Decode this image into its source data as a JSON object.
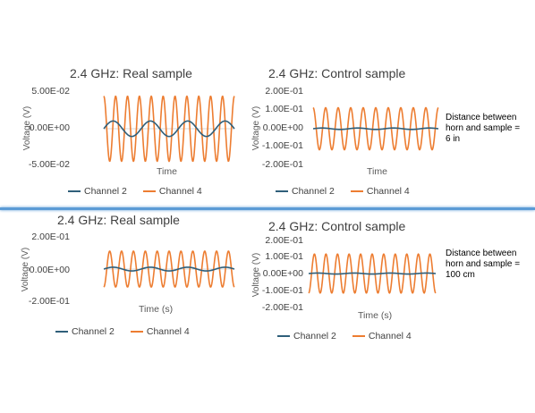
{
  "colors": {
    "channel2": "#2f5f7a",
    "channel4": "#ed7d31",
    "axis": "#d9d9d9",
    "divider": "#5b9bd5"
  },
  "notes": {
    "top": [
      "Distance between",
      "horn and sample =",
      "6 in"
    ],
    "bottom": [
      "Distance between",
      "horn and sample =",
      "100 cm"
    ]
  },
  "chart_data": [
    {
      "type": "line",
      "title": "2.4 GHz: Real sample",
      "xlabel": "Time",
      "ylabel": "Voltage (V)",
      "yticks": [
        "5.00E-02",
        "0.00E+00",
        "-5.00E-02"
      ],
      "ylim": [
        -0.05,
        0.05
      ],
      "legend": "bottom",
      "grid": false,
      "cycles": 11,
      "series": [
        {
          "name": "Channel 2",
          "amplitude": 0.009,
          "cycles": 3.5,
          "phase": 0.0
        },
        {
          "name": "Channel 4",
          "amplitude": 0.038,
          "cycles": 11,
          "phase": 1.57
        }
      ]
    },
    {
      "type": "line",
      "title": "2.4 GHz: Control sample",
      "xlabel": "Time",
      "ylabel": "Voltage (V)",
      "yticks": [
        "2.00E-01",
        "1.00E-01",
        "0.00E+00",
        "-1.00E-01",
        "-2.00E-01"
      ],
      "ylim": [
        -0.2,
        0.2
      ],
      "legend": "bottom",
      "grid": false,
      "series": [
        {
          "name": "Channel 2",
          "amplitude": 0.004,
          "cycles": 3.5,
          "phase": 0.0
        },
        {
          "name": "Channel 4",
          "amplitude": 0.115,
          "cycles": 10,
          "phase": 1.57
        }
      ]
    },
    {
      "type": "line",
      "title": "2.4 GHz: Real sample",
      "xlabel": "Time (s)",
      "ylabel": "Voltage (V)",
      "yticks": [
        "2.00E-01",
        "0.00E+00",
        "-2.00E-01"
      ],
      "ylim": [
        -0.2,
        0.2
      ],
      "legend": "bottom",
      "grid": false,
      "series": [
        {
          "name": "Channel 2",
          "amplitude": 0.012,
          "cycles": 3.5,
          "phase": 0.0
        },
        {
          "name": "Channel 4",
          "amplitude": 0.115,
          "cycles": 11,
          "phase": -1.57
        }
      ]
    },
    {
      "type": "line",
      "title": "2.4 GHz: Control sample",
      "xlabel": "Time (s)",
      "ylabel": "Voltage (V)",
      "yticks": [
        "2.00E-01",
        "1.00E-01",
        "0.00E+00",
        "-1.00E-01",
        "-2.00E-01"
      ],
      "ylim": [
        -0.2,
        0.2
      ],
      "legend": "bottom",
      "grid": false,
      "series": [
        {
          "name": "Channel 2",
          "amplitude": 0.003,
          "cycles": 3.5,
          "phase": 0.0
        },
        {
          "name": "Channel 4",
          "amplitude": 0.115,
          "cycles": 11,
          "phase": -1.57
        }
      ]
    }
  ]
}
